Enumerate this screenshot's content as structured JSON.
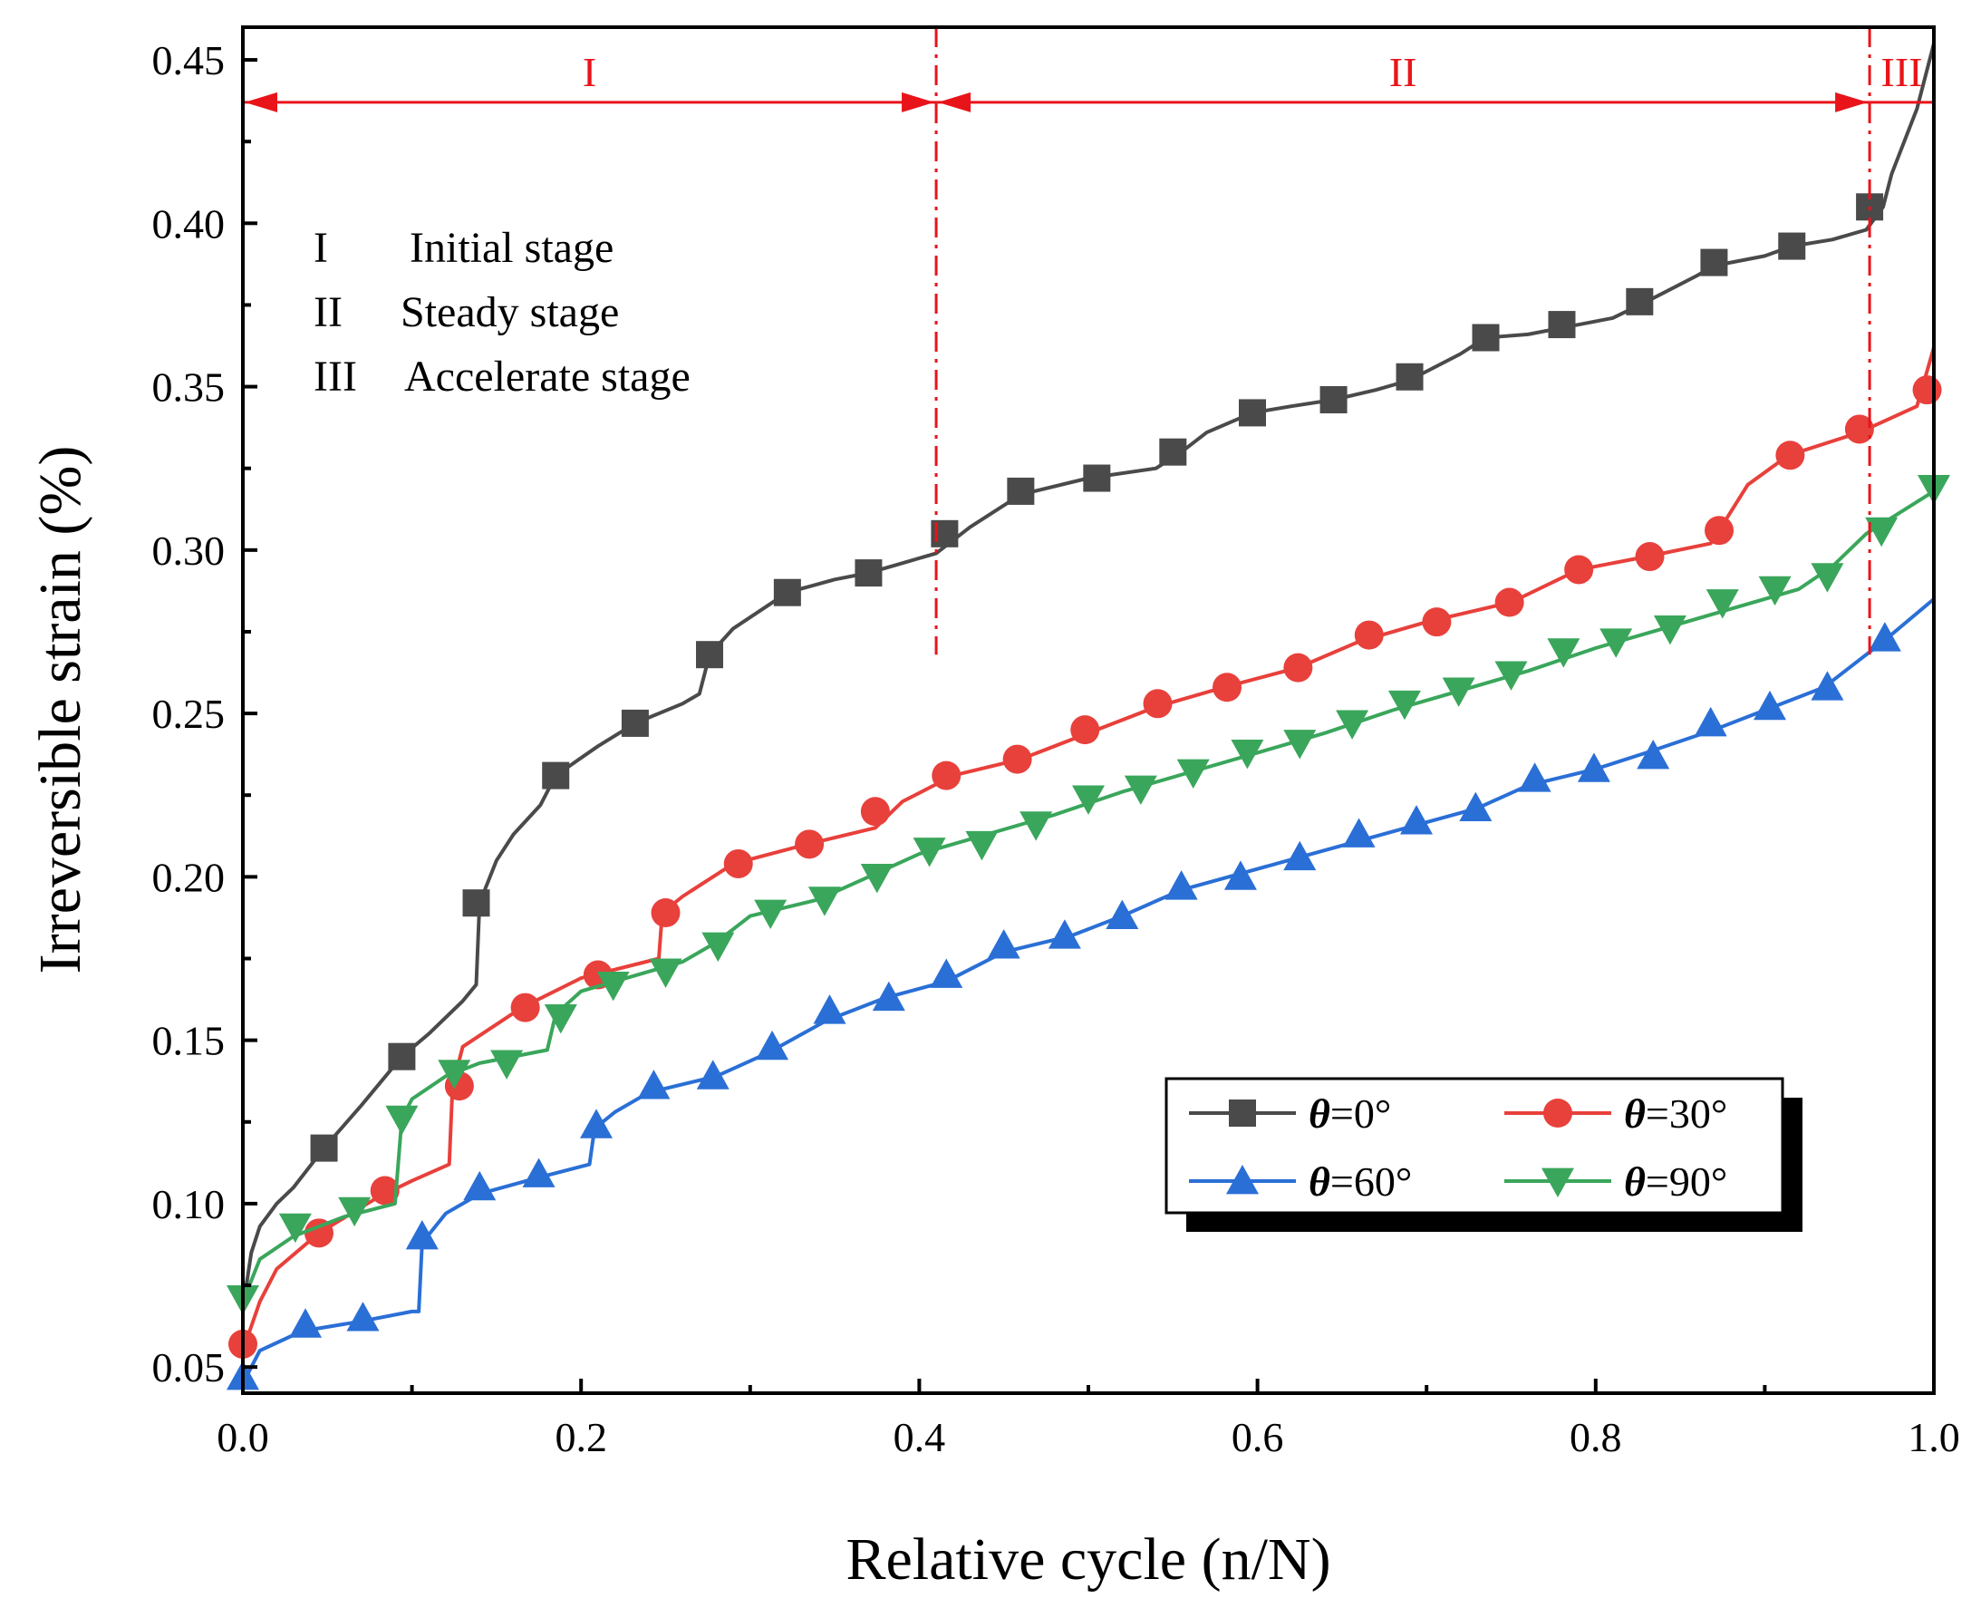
{
  "chart_data": {
    "type": "line",
    "xlabel": "Relative cycle (n/N)",
    "ylabel": "Irreversible strain (%)",
    "xlim": [
      0.0,
      1.0
    ],
    "ylim": [
      0.042,
      0.46
    ],
    "xticks": [
      0.0,
      0.2,
      0.4,
      0.6,
      0.8,
      1.0
    ],
    "xtick_labels": [
      "0.0",
      "0.2",
      "0.4",
      "0.6",
      "0.8",
      "1.0"
    ],
    "yticks": [
      0.05,
      0.1,
      0.15,
      0.2,
      0.25,
      0.3,
      0.35,
      0.4,
      0.45
    ],
    "ytick_labels": [
      "0.05",
      "0.10",
      "0.15",
      "0.20",
      "0.25",
      "0.30",
      "0.35",
      "0.40",
      "0.45"
    ],
    "grid": false,
    "legend_position": "bottom-right",
    "series": [
      {
        "name": "θ=0°",
        "symbol": "θ",
        "label_suffix": "=0°",
        "color": "#4a4a4a",
        "marker": "square",
        "x": [
          0.0,
          0.005,
          0.01,
          0.02,
          0.03,
          0.048,
          0.07,
          0.094,
          0.11,
          0.13,
          0.138,
          0.14,
          0.15,
          0.16,
          0.176,
          0.185,
          0.21,
          0.232,
          0.26,
          0.27,
          0.276,
          0.29,
          0.322,
          0.35,
          0.37,
          0.39,
          0.41,
          0.43,
          0.46,
          0.5,
          0.54,
          0.555,
          0.57,
          0.597,
          0.62,
          0.645,
          0.67,
          0.69,
          0.72,
          0.735,
          0.76,
          0.78,
          0.81,
          0.83,
          0.86,
          0.87,
          0.9,
          0.916,
          0.94,
          0.96,
          0.97,
          0.975,
          0.99,
          1.0
        ],
        "y": [
          0.068,
          0.085,
          0.093,
          0.1,
          0.105,
          0.117,
          0.13,
          0.145,
          0.152,
          0.162,
          0.167,
          0.192,
          0.205,
          0.213,
          0.222,
          0.231,
          0.24,
          0.247,
          0.253,
          0.256,
          0.268,
          0.276,
          0.287,
          0.291,
          0.293,
          0.296,
          0.299,
          0.307,
          0.317,
          0.322,
          0.325,
          0.33,
          0.336,
          0.342,
          0.344,
          0.346,
          0.349,
          0.352,
          0.36,
          0.365,
          0.366,
          0.368,
          0.371,
          0.376,
          0.384,
          0.387,
          0.39,
          0.393,
          0.395,
          0.398,
          0.405,
          0.415,
          0.435,
          0.455
        ],
        "markers_x": [
          0.048,
          0.094,
          0.138,
          0.185,
          0.232,
          0.276,
          0.322,
          0.37,
          0.415,
          0.46,
          0.505,
          0.55,
          0.597,
          0.645,
          0.69,
          0.735,
          0.78,
          0.826,
          0.87,
          0.916,
          0.962
        ],
        "markers_y": [
          0.117,
          0.145,
          0.192,
          0.231,
          0.247,
          0.268,
          0.287,
          0.293,
          0.305,
          0.318,
          0.322,
          0.33,
          0.342,
          0.346,
          0.353,
          0.365,
          0.369,
          0.376,
          0.388,
          0.393,
          0.405
        ]
      },
      {
        "name": "θ=30°",
        "symbol": "θ",
        "label_suffix": "=30°",
        "color": "#e8403b",
        "marker": "circle",
        "x": [
          0.0,
          0.01,
          0.02,
          0.045,
          0.08,
          0.1,
          0.122,
          0.124,
          0.13,
          0.165,
          0.2,
          0.246,
          0.248,
          0.26,
          0.29,
          0.334,
          0.374,
          0.39,
          0.42,
          0.46,
          0.5,
          0.54,
          0.58,
          0.624,
          0.66,
          0.7,
          0.75,
          0.79,
          0.83,
          0.868,
          0.873,
          0.89,
          0.914,
          0.956,
          0.99,
          1.0
        ],
        "y": [
          0.055,
          0.07,
          0.08,
          0.091,
          0.102,
          0.107,
          0.112,
          0.136,
          0.148,
          0.16,
          0.169,
          0.175,
          0.189,
          0.194,
          0.204,
          0.21,
          0.215,
          0.223,
          0.231,
          0.236,
          0.244,
          0.252,
          0.258,
          0.264,
          0.272,
          0.278,
          0.284,
          0.294,
          0.298,
          0.302,
          0.306,
          0.32,
          0.329,
          0.336,
          0.344,
          0.362
        ],
        "markers_x": [
          0.0,
          0.045,
          0.084,
          0.128,
          0.167,
          0.21,
          0.25,
          0.293,
          0.335,
          0.374,
          0.416,
          0.458,
          0.498,
          0.541,
          0.582,
          0.624,
          0.666,
          0.706,
          0.749,
          0.79,
          0.832,
          0.873,
          0.915,
          0.956,
          0.996
        ],
        "markers_y": [
          0.057,
          0.091,
          0.104,
          0.136,
          0.16,
          0.17,
          0.189,
          0.204,
          0.21,
          0.22,
          0.231,
          0.236,
          0.245,
          0.253,
          0.258,
          0.264,
          0.274,
          0.278,
          0.284,
          0.294,
          0.298,
          0.306,
          0.329,
          0.337,
          0.349
        ]
      },
      {
        "name": "θ=60°",
        "symbol": "θ",
        "label_suffix": "=60°",
        "color": "#2a6fd6",
        "marker": "triangle-up",
        "x": [
          0.0,
          0.01,
          0.035,
          0.07,
          0.1,
          0.104,
          0.106,
          0.12,
          0.14,
          0.175,
          0.205,
          0.208,
          0.22,
          0.24,
          0.28,
          0.31,
          0.345,
          0.38,
          0.416,
          0.45,
          0.49,
          0.52,
          0.555,
          0.59,
          0.625,
          0.66,
          0.695,
          0.73,
          0.76,
          0.8,
          0.83,
          0.87,
          0.9,
          0.935,
          0.97,
          1.0
        ],
        "y": [
          0.045,
          0.055,
          0.061,
          0.064,
          0.067,
          0.067,
          0.088,
          0.097,
          0.103,
          0.108,
          0.112,
          0.123,
          0.128,
          0.134,
          0.139,
          0.146,
          0.156,
          0.163,
          0.168,
          0.177,
          0.182,
          0.188,
          0.196,
          0.201,
          0.206,
          0.211,
          0.216,
          0.221,
          0.228,
          0.233,
          0.238,
          0.245,
          0.251,
          0.258,
          0.272,
          0.285
        ],
        "markers_x": [
          0.0,
          0.037,
          0.071,
          0.106,
          0.14,
          0.175,
          0.209,
          0.243,
          0.278,
          0.313,
          0.347,
          0.382,
          0.416,
          0.45,
          0.486,
          0.52,
          0.555,
          0.59,
          0.625,
          0.66,
          0.694,
          0.729,
          0.764,
          0.799,
          0.834,
          0.868,
          0.903,
          0.937,
          0.971
        ],
        "markers_y": [
          0.047,
          0.063,
          0.065,
          0.09,
          0.105,
          0.109,
          0.124,
          0.136,
          0.139,
          0.148,
          0.159,
          0.163,
          0.17,
          0.179,
          0.182,
          0.188,
          0.197,
          0.2,
          0.206,
          0.213,
          0.217,
          0.221,
          0.23,
          0.233,
          0.237,
          0.247,
          0.252,
          0.258,
          0.273
        ]
      },
      {
        "name": "θ=90°",
        "symbol": "θ",
        "label_suffix": "=90°",
        "color": "#3aa65b",
        "marker": "triangle-down",
        "x": [
          0.0,
          0.01,
          0.03,
          0.06,
          0.09,
          0.094,
          0.1,
          0.12,
          0.14,
          0.18,
          0.185,
          0.2,
          0.22,
          0.26,
          0.28,
          0.3,
          0.34,
          0.37,
          0.4,
          0.44,
          0.48,
          0.52,
          0.56,
          0.6,
          0.64,
          0.68,
          0.72,
          0.76,
          0.8,
          0.84,
          0.88,
          0.92,
          0.94,
          0.96,
          1.0
        ],
        "y": [
          0.07,
          0.083,
          0.09,
          0.096,
          0.1,
          0.126,
          0.132,
          0.139,
          0.143,
          0.147,
          0.158,
          0.165,
          0.168,
          0.174,
          0.18,
          0.188,
          0.193,
          0.2,
          0.207,
          0.213,
          0.219,
          0.226,
          0.232,
          0.238,
          0.244,
          0.251,
          0.257,
          0.263,
          0.27,
          0.276,
          0.282,
          0.288,
          0.295,
          0.305,
          0.318
        ],
        "markers_x": [
          0.0,
          0.031,
          0.066,
          0.094,
          0.125,
          0.156,
          0.188,
          0.219,
          0.25,
          0.281,
          0.312,
          0.344,
          0.375,
          0.406,
          0.437,
          0.469,
          0.5,
          0.531,
          0.562,
          0.594,
          0.625,
          0.656,
          0.687,
          0.719,
          0.75,
          0.781,
          0.812,
          0.844,
          0.875,
          0.906,
          0.937,
          0.969,
          1.0
        ],
        "markers_y": [
          0.071,
          0.093,
          0.098,
          0.126,
          0.14,
          0.143,
          0.157,
          0.167,
          0.171,
          0.179,
          0.189,
          0.193,
          0.2,
          0.208,
          0.21,
          0.216,
          0.224,
          0.227,
          0.232,
          0.238,
          0.241,
          0.247,
          0.253,
          0.257,
          0.262,
          0.269,
          0.272,
          0.276,
          0.284,
          0.288,
          0.292,
          0.306,
          0.319
        ]
      }
    ],
    "stage_dividers": [
      0.41,
      0.962
    ],
    "stage_divider_y_range": [
      0.268,
      0.46
    ],
    "stage_arrow_y": 0.437,
    "stage_color": "#e8141a",
    "stages": [
      {
        "label": "I",
        "x_range": [
          0.0,
          0.41
        ]
      },
      {
        "label": "II",
        "x_range": [
          0.41,
          0.962
        ]
      },
      {
        "label": "III",
        "x_range": [
          0.962,
          1.0
        ]
      }
    ],
    "annotations": [
      {
        "roman": "I",
        "text": "Initial stage"
      },
      {
        "roman": "II",
        "text": "Steady stage"
      },
      {
        "roman": "III",
        "text": "Accelerate stage"
      }
    ]
  }
}
